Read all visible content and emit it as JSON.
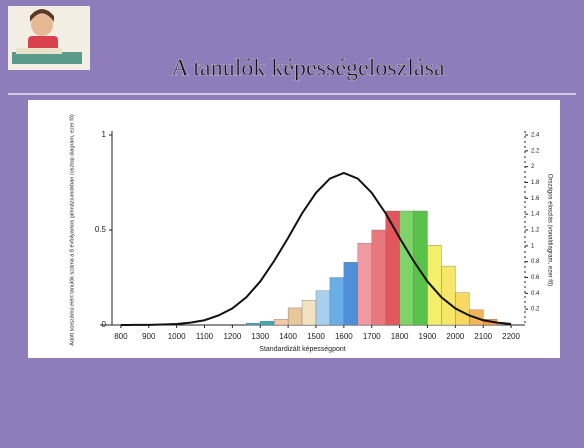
{
  "title": "A tanulók képességeloszlása",
  "chart_data": {
    "type": "histogram",
    "xlabel": "Standardizált képességpont",
    "ylabel": "Adott sorszámú elért tanulók száma a 8 évfolyamos gimnáziumokban (oszlop diagram, ezer fő)",
    "y2label": "Országos eloszlás (vonaldiagram, ezer fő)",
    "bins": [
      1250,
      1300,
      1350,
      1400,
      1450,
      1500,
      1550,
      1600,
      1650,
      1700,
      1750,
      1800,
      1850,
      1900,
      1950,
      2000,
      2050,
      2100,
      2150
    ],
    "values": [
      0.01,
      0.02,
      0.03,
      0.09,
      0.13,
      0.18,
      0.25,
      0.33,
      0.43,
      0.5,
      0.6,
      0.6,
      0.6,
      0.42,
      0.31,
      0.17,
      0.08,
      0.03
    ],
    "colors": [
      "#3aa9b8",
      "#3aa9b8",
      "#f3c9a8",
      "#e8c79a",
      "#f2e2c0",
      "#a9cfee",
      "#6aaee6",
      "#4e8fd8",
      "#ee9aa0",
      "#e9777e",
      "#e0575e",
      "#7fd36b",
      "#5ac24a",
      "#f4ef6a",
      "#f6e66a",
      "#f7d860",
      "#f4b55a",
      "#f39a4a"
    ],
    "line": {
      "axis": "y2",
      "color": "#111111",
      "x": [
        800,
        850,
        900,
        950,
        1000,
        1050,
        1100,
        1150,
        1200,
        1250,
        1300,
        1350,
        1400,
        1450,
        1500,
        1550,
        1600,
        1650,
        1700,
        1750,
        1800,
        1850,
        1900,
        1950,
        2000,
        2050,
        2100,
        2150,
        2200
      ],
      "values": [
        0,
        0.001,
        0.002,
        0.006,
        0.013,
        0.03,
        0.06,
        0.12,
        0.21,
        0.35,
        0.55,
        0.81,
        1.1,
        1.41,
        1.67,
        1.85,
        1.92,
        1.85,
        1.67,
        1.41,
        1.1,
        0.81,
        0.55,
        0.35,
        0.21,
        0.12,
        0.06,
        0.03,
        0.013
      ]
    },
    "xlim": [
      725,
      2250
    ],
    "xticks": [
      800,
      900,
      1000,
      1100,
      1200,
      1300,
      1400,
      1500,
      1600,
      1700,
      1800,
      1900,
      2000,
      2100,
      2200
    ],
    "ylim": [
      0,
      1
    ],
    "yticks": [
      0,
      0.5,
      1
    ],
    "y2lim": [
      0,
      2.4
    ],
    "y2ticks": [
      0.2,
      0.4,
      0.6,
      0.8,
      1,
      1.2,
      1.4,
      1.6,
      1.8,
      2,
      2.2,
      2.4
    ]
  }
}
